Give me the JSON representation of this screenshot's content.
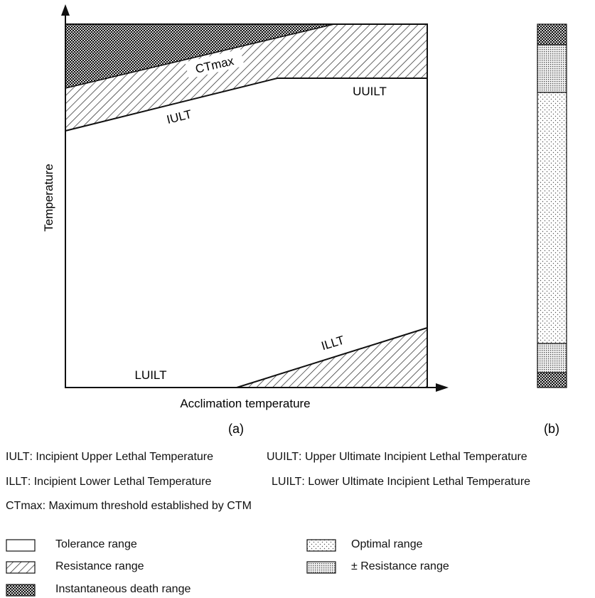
{
  "figure_a": {
    "caption": "(a)",
    "xlabel": "Acclimation temperature",
    "ylabel": "Temperature",
    "curve_labels": {
      "ctmax": "CTmax",
      "iult": "IULT",
      "uuilt": "UUILT",
      "illt": "ILLT",
      "luilt": "LUILT"
    }
  },
  "figure_b": {
    "caption": "(b)"
  },
  "definitions": [
    [
      {
        "abbr": "IULT",
        "text": " : Incipient Upper Lethal Temperature"
      },
      {
        "abbr": "UUILT",
        "text": " : Upper Ultimate Incipient Lethal Temperature"
      }
    ],
    [
      {
        "abbr": "ILLT",
        "text": " : Incipient Lower Lethal Temperature"
      },
      {
        "abbr": "LUILT",
        "text": " : Lower Ultimate Incipient Lethal Temperature"
      }
    ],
    [
      {
        "abbr": "CTmax",
        "text": " : Maximum threshold established by CTM"
      }
    ]
  ],
  "legend": {
    "tolerance": "Tolerance range",
    "resistance": "Resistance range",
    "death": "Instantaneous death range",
    "optimal": "Optimal range",
    "pm_resistance": "± Resistance range"
  }
}
